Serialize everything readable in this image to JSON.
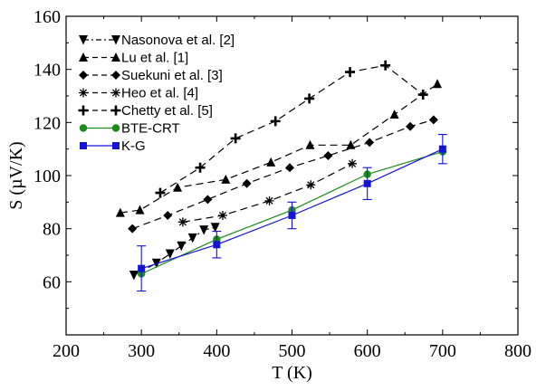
{
  "chart_data": {
    "type": "line",
    "title": "",
    "xlabel": "T (K)",
    "ylabel": "S (µV/K)",
    "xlim": [
      200,
      800
    ],
    "ylim": [
      40,
      160
    ],
    "xticks": [
      200,
      300,
      400,
      500,
      600,
      700,
      800
    ],
    "yticks": [
      60,
      80,
      100,
      120,
      140,
      160
    ],
    "legend_position": "top-left",
    "series": [
      {
        "name": "Nasonova et al. [2]",
        "marker": "triangle-down",
        "line": "dash-dot",
        "color": "#000000",
        "x": [
          290,
          320,
          338,
          353,
          368,
          383,
          398
        ],
        "y": [
          62.5,
          67,
          70.5,
          73.5,
          76.5,
          79.5,
          80.5
        ]
      },
      {
        "name": "Lu et al. [1]",
        "marker": "triangle-up",
        "line": "dashed",
        "color": "#000000",
        "x": [
          272,
          298,
          348,
          412,
          472,
          524,
          578,
          636,
          693
        ],
        "y": [
          86,
          87,
          95.5,
          98.5,
          105,
          111.5,
          111.5,
          123,
          134.5
        ]
      },
      {
        "name": "Suekuni et al. [3]",
        "marker": "diamond",
        "line": "dashed",
        "color": "#000000",
        "x": [
          288,
          335,
          388,
          440,
          497,
          548,
          603,
          657,
          688
        ],
        "y": [
          80,
          85,
          91,
          97,
          103,
          107.5,
          112.5,
          118.5,
          121
        ]
      },
      {
        "name": "Heo et al. [4]",
        "marker": "asterisk",
        "line": "dashed",
        "color": "#000000",
        "x": [
          355,
          408,
          470,
          525,
          580
        ],
        "y": [
          82.5,
          85,
          90.5,
          96.5,
          104.5
        ]
      },
      {
        "name": "Chetty et al. [5]",
        "marker": "plus",
        "line": "dashed",
        "color": "#000000",
        "x": [
          325,
          378,
          425,
          478,
          523,
          577,
          624,
          674
        ],
        "y": [
          93.5,
          103,
          114,
          120.5,
          129,
          139,
          141.5,
          130.5
        ]
      },
      {
        "name": "BTE-CRT",
        "marker": "circle",
        "line": "solid",
        "color": "#1a8c1a",
        "x": [
          300,
          400,
          500,
          600,
          700
        ],
        "y": [
          63,
          76,
          87,
          100.5,
          109
        ]
      },
      {
        "name": "K-G",
        "marker": "square",
        "line": "solid",
        "color": "#1414d9",
        "x": [
          300,
          400,
          500,
          600,
          700
        ],
        "y": [
          65,
          74,
          85,
          97,
          110
        ],
        "yerr": [
          8.5,
          5,
          5,
          6,
          5.5
        ]
      }
    ]
  }
}
